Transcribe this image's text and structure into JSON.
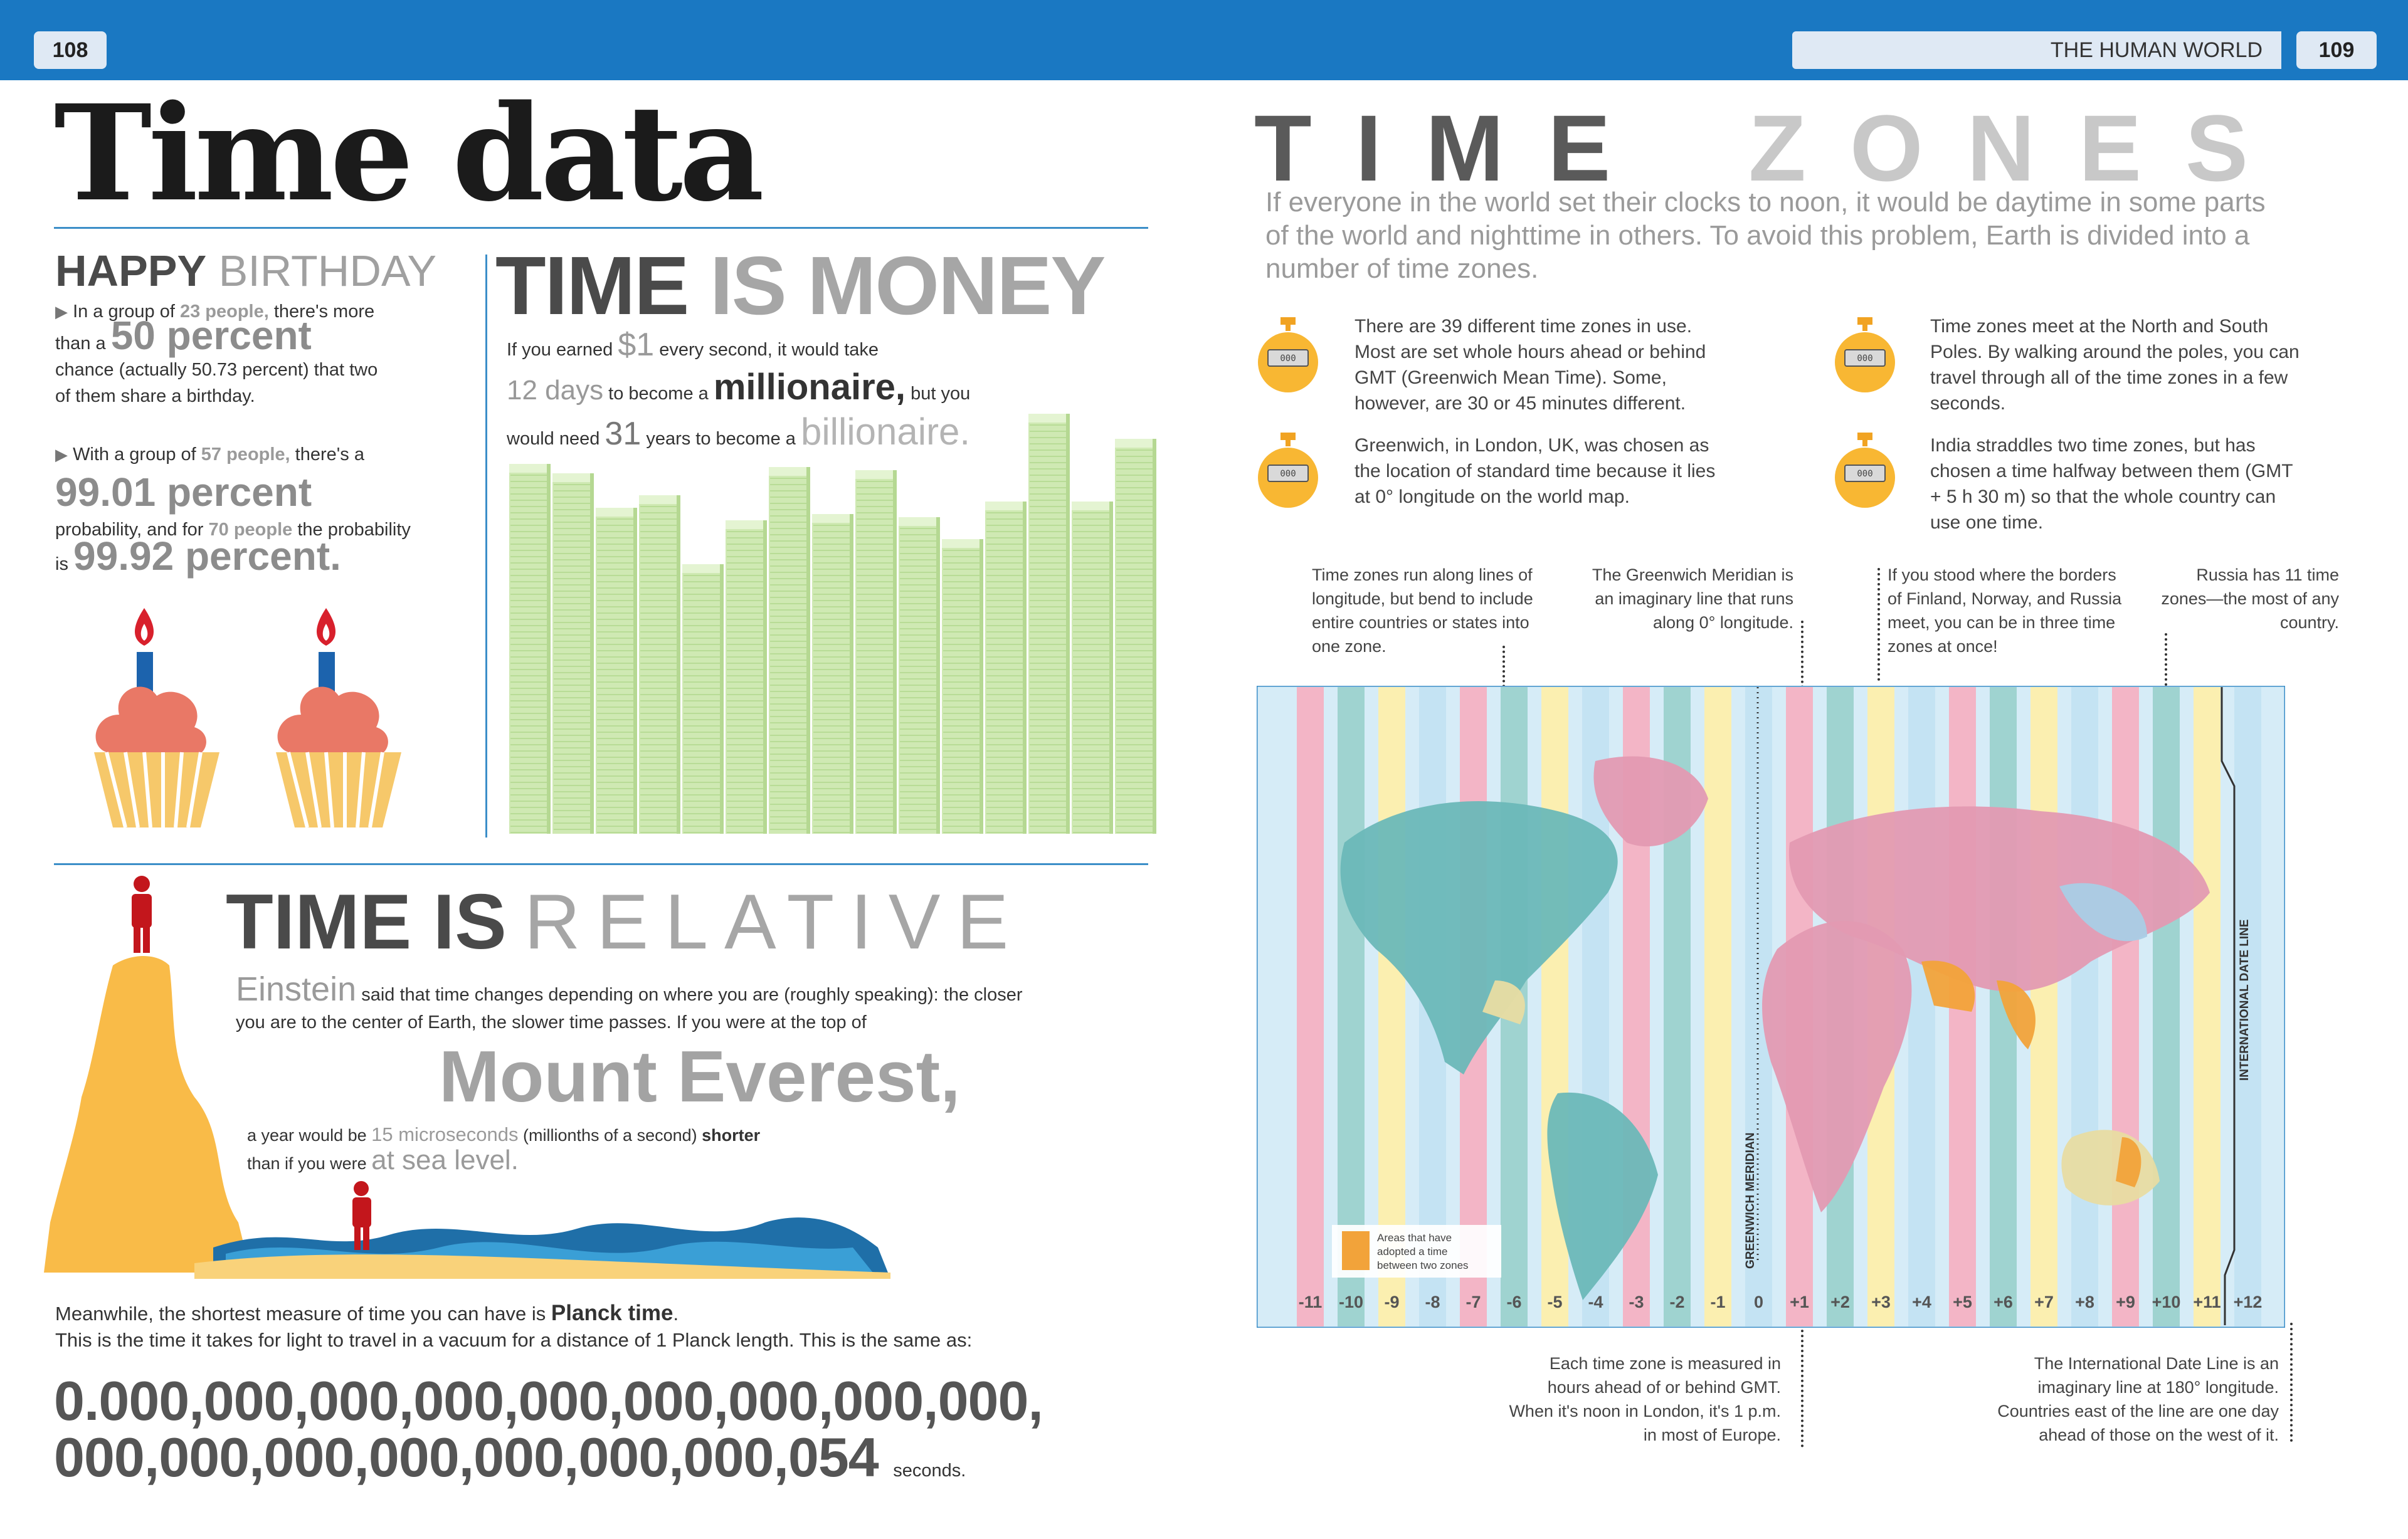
{
  "header": {
    "page_left": "108",
    "page_right": "109",
    "section": "THE HUMAN WORLD"
  },
  "title": "Time data",
  "birthday": {
    "heading_dark": "HAPPY",
    "heading_light": "BIRTHDAY",
    "p1_a": "In a group of",
    "p1_people": "23 people,",
    "p1_b": "there's more",
    "p1_c": "than a",
    "p1_stat": "50 percent",
    "p1_d": "chance (actually 50.73 percent) that two",
    "p1_e": "of them share a birthday.",
    "p2_a": "With a group of",
    "p2_people": "57 people,",
    "p2_b": "there's a",
    "p2_stat": "99.01 percent",
    "p2_c": "probability, and for",
    "p2_people2": "70 people",
    "p2_d": "the probability",
    "p2_e": "is",
    "p2_stat2": "99.92 percent."
  },
  "money": {
    "title_dark": "TIME",
    "title_light": "IS MONEY",
    "l1_a": "If you earned",
    "l1_amt": "$1",
    "l1_b": "every second, it would take",
    "l2_num": "12 days",
    "l2_a": "to become a",
    "l2_word": "millionaire,",
    "l2_b": "but you",
    "l3_a": "would need",
    "l3_num": "31",
    "l3_b": "years to become a",
    "l3_word": "billionaire."
  },
  "relative": {
    "title_dark": "TIME IS",
    "title_light": "RELATIVE",
    "einstein": "Einstein",
    "t1": "said that time changes depending on where you are (roughly speaking): the closer",
    "t2": "you are to the center of Earth, the slower time passes. If you were at the top of",
    "mountain": "Mount Everest,",
    "t3_a": "a year would be",
    "t3_micro": "15 microseconds",
    "t3_b": "(millionths of a second)",
    "t3_bold": "shorter",
    "t4_a": "than if you were",
    "t4_sea": "at sea level."
  },
  "planck": {
    "l1_a": "Meanwhile, the shortest measure of time you can have is",
    "l1_bold": "Planck time",
    "l1_b": ".",
    "l2": "This is the time it takes for light to travel in a vacuum for a distance of 1 Planck length. This is the same as:",
    "n1": "0.000,000,000,000,000,000,000,000,000,",
    "n2": "000,000,000,000,000,000,000,054",
    "unit": "seconds."
  },
  "timezones": {
    "title_a": "TIME",
    "title_b": "ZONES",
    "intro": "If everyone in the world set their clocks to noon, it would be daytime in some parts of the world and nighttime in others. To avoid this problem, Earth is divided into a number of time zones.",
    "facts": [
      "There are 39 different time zones in use. Most are set whole hours ahead or behind GMT (Greenwich Mean Time). Some, however, are 30 or 45 minutes different.",
      "Time zones meet at the North and South Poles. By walking around the poles, you can travel through all of the time zones in a few seconds.",
      "Greenwich, in London, UK, was chosen as the location of standard time because it lies at 0° longitude on the world map.",
      "India straddles two time zones, but has chosen a time halfway between them (GMT + 5 h 30 m) so that the whole country can use one time."
    ],
    "watch_text": "000",
    "notes": {
      "lines": "Time zones run along lines of longitude, but bend to include entire countries or states into one zone.",
      "greenwich": "The Greenwich Meridian is an imaginary line that runs along 0° longitude.",
      "finland": "If you stood where the borders of Finland, Norway, and Russia meet, you can be in three time zones at once!",
      "russia": "Russia has 11 time zones—the most of any country.",
      "gmt": "Each time zone is measured in hours ahead of or behind GMT. When it's noon in London, it's 1 p.m. in most of Europe.",
      "dateline": "The International Date Line is an imaginary line at 180° longitude. Countries east of the line are one day ahead of those on the west of it."
    },
    "map": {
      "greenwich_label": "GREENWICH MERIDIAN",
      "dateline_label": "INTERNATIONAL DATE LINE",
      "legend": "Areas that have adopted a time between two zones",
      "zones": [
        "-11",
        "-10",
        "-9",
        "-8",
        "-7",
        "-6",
        "-5",
        "-4",
        "-3",
        "-2",
        "-1",
        "0",
        "+1",
        "+2",
        "+3",
        "+4",
        "+5",
        "+6",
        "+7",
        "+8",
        "+9",
        "+10",
        "+11",
        "+12"
      ],
      "colors": {
        "pink": "#f3b5c6",
        "teal": "#9fd3d0",
        "yellow": "#fbefb0",
        "blue": "#c4e3f3",
        "land_pink": "#e39ab2",
        "land_teal": "#6cb8b8",
        "land_yellow": "#e8dca2",
        "land_blue": "#a9cde6",
        "half": "#f2a33a"
      }
    }
  }
}
